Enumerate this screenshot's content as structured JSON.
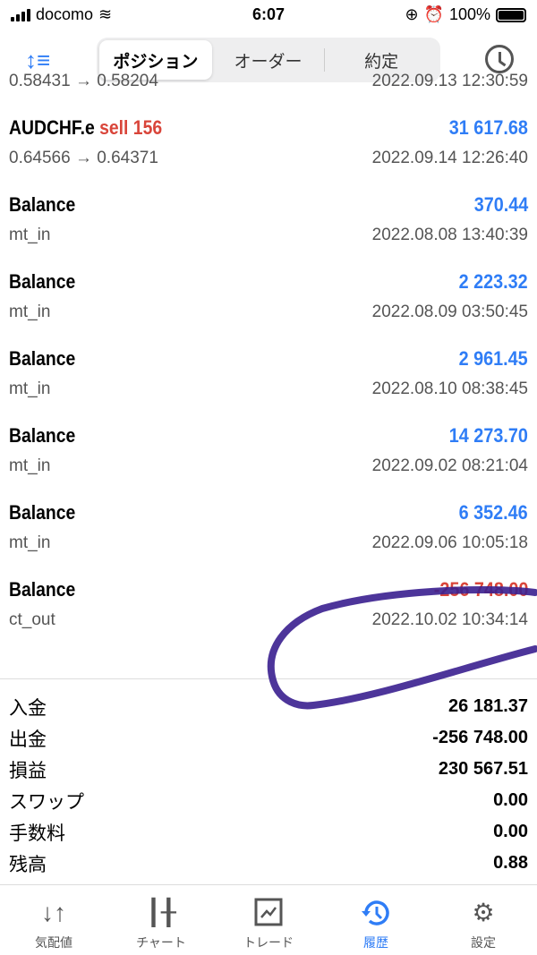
{
  "status_bar": {
    "carrier": "docomo",
    "time": "6:07",
    "battery": "100%"
  },
  "toolbar": {
    "tabs": [
      {
        "label": "ポジション",
        "active": true
      },
      {
        "label": "オーダー"
      },
      {
        "label": "約定"
      }
    ]
  },
  "history": [
    {
      "sub": "0.58431 → 0.58204",
      "date": "2022.09.13 12:30:59",
      "partial": true
    },
    {
      "symbol": "AUDCHF.e",
      "side": "sell 156",
      "amount": "31 617.68",
      "sub": "0.64566 → 0.64371",
      "date": "2022.09.14 12:26:40"
    },
    {
      "symbol": "Balance",
      "amount": "370.44",
      "sub": "mt_in",
      "date": "2022.08.08 13:40:39"
    },
    {
      "symbol": "Balance",
      "amount": "2 223.32",
      "sub": "mt_in",
      "date": "2022.08.09 03:50:45"
    },
    {
      "symbol": "Balance",
      "amount": "2 961.45",
      "sub": "mt_in",
      "date": "2022.08.10 08:38:45"
    },
    {
      "symbol": "Balance",
      "amount": "14 273.70",
      "sub": "mt_in",
      "date": "2022.09.02 08:21:04"
    },
    {
      "symbol": "Balance",
      "amount": "6 352.46",
      "sub": "mt_in",
      "date": "2022.09.06 10:05:18"
    },
    {
      "symbol": "Balance",
      "amount": "-256 748.00",
      "sub": "ct_out",
      "date": "2022.10.02 10:34:14",
      "negative": true
    }
  ],
  "summary": [
    {
      "label": "入金",
      "value": "26 181.37"
    },
    {
      "label": "出金",
      "value": "-256 748.00"
    },
    {
      "label": "損益",
      "value": "230 567.51"
    },
    {
      "label": "スワップ",
      "value": "0.00"
    },
    {
      "label": "手数料",
      "value": "0.00"
    },
    {
      "label": "残高",
      "value": "0.88"
    }
  ],
  "tabbar": [
    {
      "label": "気配値",
      "icon": "quotes-arrows-icon"
    },
    {
      "label": "チャート",
      "icon": "candlestick-icon"
    },
    {
      "label": "トレード",
      "icon": "trade-chart-icon"
    },
    {
      "label": "履歴",
      "icon": "history-icon",
      "active": true
    },
    {
      "label": "設定",
      "icon": "gear-icon"
    }
  ],
  "colors": {
    "accent": "#2f7df6",
    "negative": "#d9453a",
    "annotation": "#3a1f8f"
  }
}
